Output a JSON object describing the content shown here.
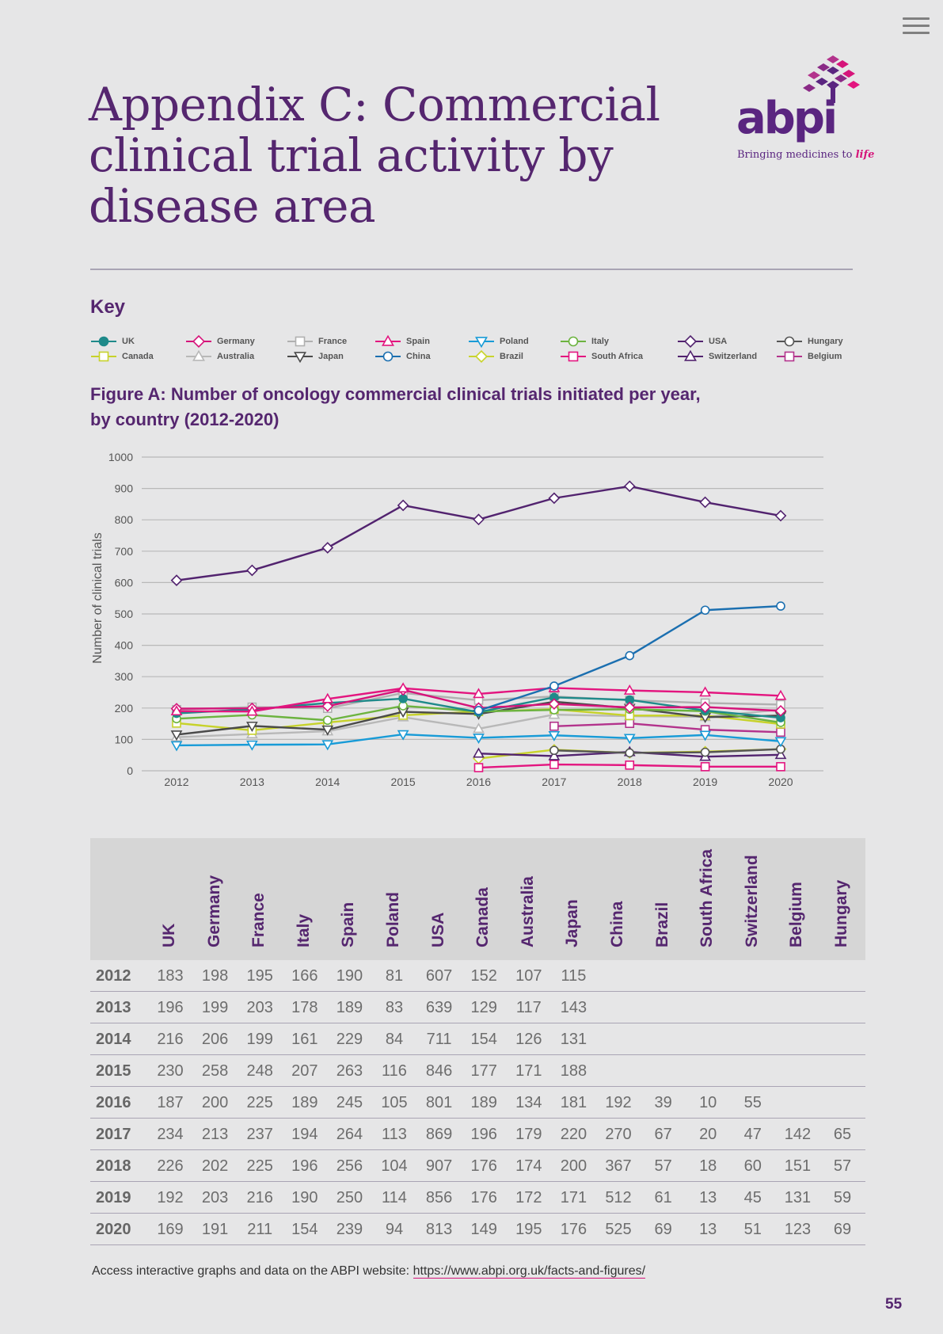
{
  "page": {
    "title": "Appendix C: Commercial clinical trial activity by disease area",
    "logo_text": "abpi",
    "logo_tagline": "Bringing medicines to",
    "logo_tagline_em": "life",
    "key_title": "Key",
    "figure_title": "Figure A: Number of oncology commercial clinical trials initiated per year, by country (2012-2020)",
    "footer_text": "Access interactive graphs and data on the ABPI website:",
    "footer_link": "https://www.abpi.org.uk/facts-and-figures/",
    "page_number": "55",
    "menu_icon": "hamburger-menu-icon"
  },
  "legend": [
    {
      "name": "UK",
      "color": "#1f8a8a",
      "marker": "circle-filled"
    },
    {
      "name": "Germany",
      "color": "#d6147a",
      "marker": "diamond"
    },
    {
      "name": "France",
      "color": "#b0b0b0",
      "marker": "square"
    },
    {
      "name": "Spain",
      "color": "#e3157f",
      "marker": "triangle-up"
    },
    {
      "name": "Poland",
      "color": "#189bd7",
      "marker": "triangle-down"
    },
    {
      "name": "Italy",
      "color": "#6cb33f",
      "marker": "circle"
    },
    {
      "name": "USA",
      "color": "#52236f",
      "marker": "diamond"
    },
    {
      "name": "Hungary",
      "color": "#555555",
      "marker": "circle"
    },
    {
      "name": "Canada",
      "color": "#c7d22a",
      "marker": "square"
    },
    {
      "name": "Australia",
      "color": "#b8b8b8",
      "marker": "triangle-up"
    },
    {
      "name": "Japan",
      "color": "#4a4a4a",
      "marker": "triangle-down"
    },
    {
      "name": "China",
      "color": "#1b6fb0",
      "marker": "circle"
    },
    {
      "name": "Brazil",
      "color": "#c9d42c",
      "marker": "diamond"
    },
    {
      "name": "South Africa",
      "color": "#e3157f",
      "marker": "square"
    },
    {
      "name": "Switzerland",
      "color": "#52236f",
      "marker": "triangle-up"
    },
    {
      "name": "Belgium",
      "color": "#b3338c",
      "marker": "square"
    }
  ],
  "chart_data": {
    "type": "line",
    "ylabel": "Number of clinical trials",
    "ylim": [
      0,
      1000
    ],
    "yticks": [
      "0",
      "100",
      "200",
      "300",
      "400",
      "500",
      "600",
      "700",
      "800",
      "900",
      "1000"
    ],
    "x": [
      "2012",
      "2013",
      "2014",
      "2015",
      "2016",
      "2017",
      "2018",
      "2019",
      "2020"
    ],
    "grid": true,
    "series": [
      {
        "name": "UK",
        "values": [
          183,
          196,
          216,
          230,
          187,
          234,
          226,
          192,
          169
        ]
      },
      {
        "name": "Germany",
        "values": [
          198,
          199,
          206,
          258,
          200,
          213,
          202,
          203,
          191
        ]
      },
      {
        "name": "France",
        "values": [
          195,
          203,
          199,
          248,
          225,
          237,
          225,
          216,
          211
        ]
      },
      {
        "name": "Italy",
        "values": [
          166,
          178,
          161,
          207,
          189,
          194,
          196,
          190,
          154
        ]
      },
      {
        "name": "Spain",
        "values": [
          190,
          189,
          229,
          263,
          245,
          264,
          256,
          250,
          239
        ]
      },
      {
        "name": "Poland",
        "values": [
          81,
          83,
          84,
          116,
          105,
          113,
          104,
          114,
          94
        ]
      },
      {
        "name": "USA",
        "values": [
          607,
          639,
          711,
          846,
          801,
          869,
          907,
          856,
          813
        ]
      },
      {
        "name": "Canada",
        "values": [
          152,
          129,
          154,
          177,
          189,
          196,
          176,
          176,
          149
        ]
      },
      {
        "name": "Australia",
        "values": [
          107,
          117,
          126,
          171,
          134,
          179,
          174,
          172,
          195
        ]
      },
      {
        "name": "Japan",
        "values": [
          115,
          143,
          131,
          188,
          181,
          220,
          200,
          171,
          176
        ]
      },
      {
        "name": "China",
        "values": [
          null,
          null,
          null,
          null,
          192,
          270,
          367,
          512,
          525
        ]
      },
      {
        "name": "Brazil",
        "values": [
          null,
          null,
          null,
          null,
          39,
          67,
          57,
          61,
          69
        ]
      },
      {
        "name": "South Africa",
        "values": [
          null,
          null,
          null,
          null,
          10,
          20,
          18,
          13,
          13
        ]
      },
      {
        "name": "Switzerland",
        "values": [
          null,
          null,
          null,
          null,
          55,
          47,
          60,
          45,
          51
        ]
      },
      {
        "name": "Belgium",
        "values": [
          null,
          null,
          null,
          null,
          null,
          142,
          151,
          131,
          123
        ]
      },
      {
        "name": "Hungary",
        "values": [
          null,
          null,
          null,
          null,
          null,
          65,
          57,
          59,
          69
        ]
      }
    ]
  },
  "table": {
    "columns": [
      "UK",
      "Germany",
      "France",
      "Italy",
      "Spain",
      "Poland",
      "USA",
      "Canada",
      "Australia",
      "Japan",
      "China",
      "Brazil",
      "South Africa",
      "Switzerland",
      "Belgium",
      "Hungary"
    ],
    "rows": [
      {
        "year": "2012",
        "cells": [
          "183",
          "198",
          "195",
          "166",
          "190",
          "81",
          "607",
          "152",
          "107",
          "115",
          "",
          "",
          "",
          "",
          "",
          ""
        ]
      },
      {
        "year": "2013",
        "cells": [
          "196",
          "199",
          "203",
          "178",
          "189",
          "83",
          "639",
          "129",
          "117",
          "143",
          "",
          "",
          "",
          "",
          "",
          ""
        ]
      },
      {
        "year": "2014",
        "cells": [
          "216",
          "206",
          "199",
          "161",
          "229",
          "84",
          "711",
          "154",
          "126",
          "131",
          "",
          "",
          "",
          "",
          "",
          ""
        ]
      },
      {
        "year": "2015",
        "cells": [
          "230",
          "258",
          "248",
          "207",
          "263",
          "116",
          "846",
          "177",
          "171",
          "188",
          "",
          "",
          "",
          "",
          "",
          ""
        ]
      },
      {
        "year": "2016",
        "cells": [
          "187",
          "200",
          "225",
          "189",
          "245",
          "105",
          "801",
          "189",
          "134",
          "181",
          "192",
          "39",
          "10",
          "55",
          "",
          ""
        ]
      },
      {
        "year": "2017",
        "cells": [
          "234",
          "213",
          "237",
          "194",
          "264",
          "113",
          "869",
          "196",
          "179",
          "220",
          "270",
          "67",
          "20",
          "47",
          "142",
          "65"
        ]
      },
      {
        "year": "2018",
        "cells": [
          "226",
          "202",
          "225",
          "196",
          "256",
          "104",
          "907",
          "176",
          "174",
          "200",
          "367",
          "57",
          "18",
          "60",
          "151",
          "57"
        ]
      },
      {
        "year": "2019",
        "cells": [
          "192",
          "203",
          "216",
          "190",
          "250",
          "114",
          "856",
          "176",
          "172",
          "171",
          "512",
          "61",
          "13",
          "45",
          "131",
          "59"
        ]
      },
      {
        "year": "2020",
        "cells": [
          "169",
          "191",
          "211",
          "154",
          "239",
          "94",
          "813",
          "149",
          "195",
          "176",
          "525",
          "69",
          "13",
          "51",
          "123",
          "69"
        ]
      }
    ]
  }
}
